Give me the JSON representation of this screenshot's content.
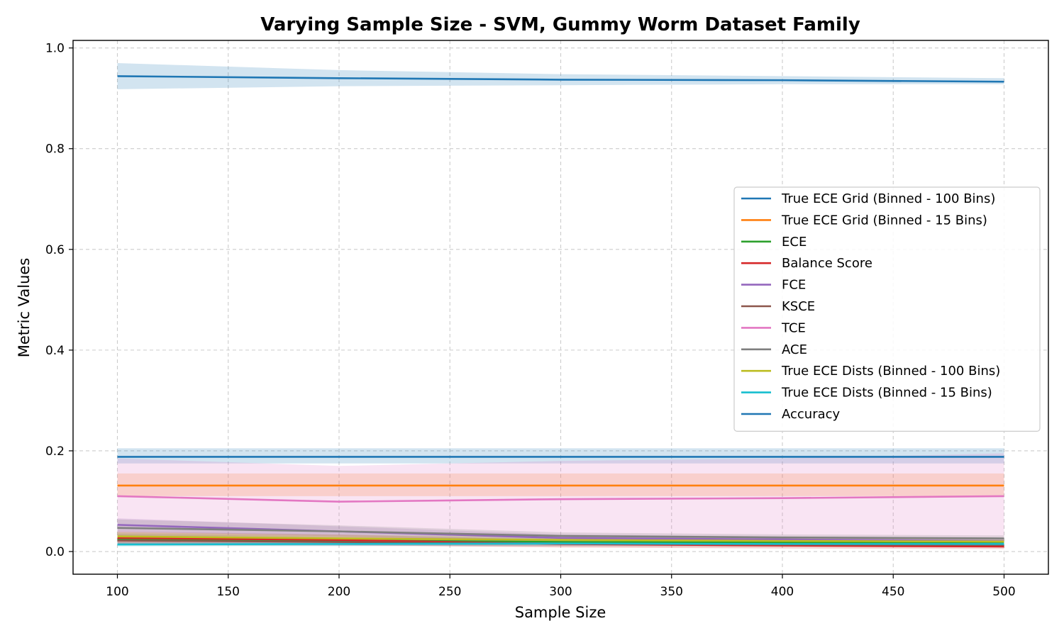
{
  "chart_data": {
    "type": "line",
    "title": "Varying Sample Size - SVM, Gummy Worm Dataset Family",
    "xlabel": "Sample Size",
    "ylabel": "Metric Values",
    "xlim": [
      80,
      520
    ],
    "ylim": [
      -0.045,
      1.015
    ],
    "xticks": [
      100,
      150,
      200,
      250,
      300,
      350,
      400,
      450,
      500
    ],
    "xtick_labels": [
      "100",
      "150",
      "200",
      "250",
      "300",
      "350",
      "400",
      "450",
      "500"
    ],
    "yticks": [
      0.0,
      0.2,
      0.4,
      0.6,
      0.8,
      1.0
    ],
    "ytick_labels": [
      "0.0",
      "0.2",
      "0.4",
      "0.6",
      "0.8",
      "1.0"
    ],
    "grid": true,
    "legend_position": "center-right",
    "x": [
      100,
      200,
      300,
      400,
      500
    ],
    "series": [
      {
        "name": "True ECE Grid (Binned - 100 Bins)",
        "color": "#1f77b4",
        "values": [
          0.188,
          0.188,
          0.188,
          0.188,
          0.188
        ],
        "lower": [
          0.175,
          0.175,
          0.175,
          0.175,
          0.175
        ],
        "upper": [
          0.205,
          0.205,
          0.205,
          0.205,
          0.205
        ]
      },
      {
        "name": "True ECE Grid (Binned - 15 Bins)",
        "color": "#ff7f0e",
        "values": [
          0.131,
          0.131,
          0.131,
          0.131,
          0.131
        ],
        "lower": [
          0.11,
          0.11,
          0.11,
          0.11,
          0.11
        ],
        "upper": [
          0.155,
          0.155,
          0.155,
          0.155,
          0.155
        ]
      },
      {
        "name": "ECE",
        "color": "#2ca02c",
        "values": [
          0.025,
          0.022,
          0.019,
          0.018,
          0.016
        ],
        "lower": [
          0.015,
          0.014,
          0.012,
          0.012,
          0.011
        ],
        "upper": [
          0.035,
          0.03,
          0.026,
          0.024,
          0.022
        ]
      },
      {
        "name": "Balance Score",
        "color": "#d62728",
        "values": [
          0.027,
          0.023,
          0.015,
          0.012,
          0.01
        ],
        "lower": [
          0.015,
          0.013,
          0.008,
          0.006,
          0.005
        ],
        "upper": [
          0.04,
          0.034,
          0.023,
          0.019,
          0.016
        ]
      },
      {
        "name": "FCE",
        "color": "#9467bd",
        "values": [
          0.053,
          0.04,
          0.027,
          0.024,
          0.021
        ],
        "lower": [
          0.04,
          0.03,
          0.02,
          0.018,
          0.016
        ],
        "upper": [
          0.066,
          0.05,
          0.034,
          0.03,
          0.026
        ]
      },
      {
        "name": "KSCE",
        "color": "#8c564b",
        "values": [
          0.022,
          0.019,
          0.016,
          0.014,
          0.013
        ],
        "lower": [
          0.012,
          0.011,
          0.01,
          0.009,
          0.008
        ],
        "upper": [
          0.032,
          0.027,
          0.022,
          0.02,
          0.018
        ]
      },
      {
        "name": "TCE",
        "color": "#e377c2",
        "values": [
          0.11,
          0.099,
          0.104,
          0.106,
          0.11
        ],
        "lower": [
          0.015,
          0.012,
          0.012,
          0.012,
          0.012
        ],
        "upper": [
          0.185,
          0.17,
          0.18,
          0.185,
          0.195
        ]
      },
      {
        "name": "ACE",
        "color": "#7f7f7f",
        "values": [
          0.047,
          0.04,
          0.031,
          0.028,
          0.026
        ],
        "lower": [
          0.032,
          0.03,
          0.024,
          0.022,
          0.02
        ],
        "upper": [
          0.064,
          0.052,
          0.038,
          0.034,
          0.032
        ]
      },
      {
        "name": "True ECE Dists (Binned - 100 Bins)",
        "color": "#bcbd22",
        "values": [
          0.03,
          0.026,
          0.023,
          0.021,
          0.02
        ],
        "lower": [
          0.022,
          0.019,
          0.017,
          0.016,
          0.015
        ],
        "upper": [
          0.038,
          0.033,
          0.029,
          0.026,
          0.025
        ]
      },
      {
        "name": "True ECE Dists (Binned - 15 Bins)",
        "color": "#17becf",
        "values": [
          0.014,
          0.015,
          0.016,
          0.015,
          0.015
        ],
        "lower": [
          0.01,
          0.011,
          0.012,
          0.011,
          0.011
        ],
        "upper": [
          0.018,
          0.019,
          0.02,
          0.019,
          0.019
        ]
      },
      {
        "name": "Accuracy",
        "color": "#1f77b4",
        "values": [
          0.944,
          0.94,
          0.937,
          0.936,
          0.933
        ],
        "lower": [
          0.918,
          0.924,
          0.926,
          0.928,
          0.928
        ],
        "upper": [
          0.97,
          0.956,
          0.948,
          0.944,
          0.94
        ]
      }
    ]
  }
}
